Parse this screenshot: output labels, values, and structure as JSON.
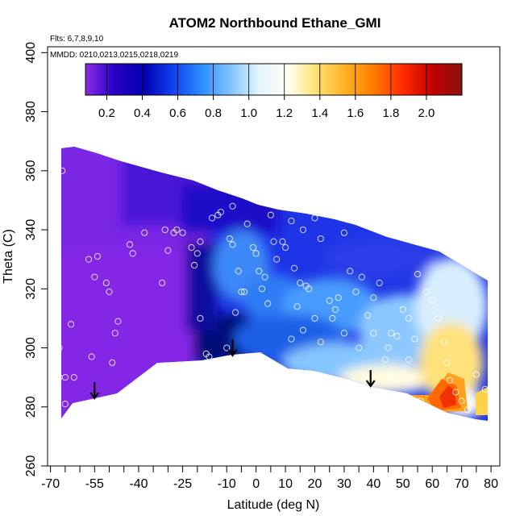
{
  "chart_data": {
    "type": "heatmap",
    "title": "ATOM2 Northbound Ethane_GMI",
    "subtitle_lines": [
      "Flts: 6,7,8,9,10",
      "MMDD: 0210,0213,0215,0218,0219"
    ],
    "xlabel": "Latitude (deg N)",
    "ylabel": "Theta (C)",
    "xlim": [
      -71,
      83
    ],
    "ylim": [
      260,
      402
    ],
    "x_tick_labels": [
      "-70",
      "-55",
      "-40",
      "-25",
      "-10",
      "0",
      "10",
      "20",
      "30",
      "40",
      "50",
      "60",
      "70",
      "80"
    ],
    "x_tick_values": [
      -70,
      -55,
      -40,
      -25,
      -10,
      0,
      10,
      20,
      30,
      40,
      50,
      60,
      70,
      80
    ],
    "x_minor_ticks": [
      -65,
      -60,
      -50,
      -45,
      -35,
      -30,
      -20,
      -15,
      -5,
      5,
      15,
      25,
      35,
      45,
      55,
      65,
      75
    ],
    "y_ticks": [
      260,
      280,
      300,
      320,
      340,
      360,
      380,
      400
    ],
    "colorbar": {
      "range": [
        0.08,
        2.2
      ],
      "tick_values": [
        0.2,
        0.4,
        0.6,
        0.8,
        1.0,
        1.2,
        1.4,
        1.6,
        1.8,
        2.0
      ],
      "tick_labels": [
        "0.2",
        "0.4",
        "0.6",
        "0.8",
        "1.0",
        "1.2",
        "1.4",
        "1.6",
        "1.8",
        "2.0"
      ],
      "colors": [
        "#8a2be2",
        "#2a00c8",
        "#0000b0",
        "#1040ee",
        "#2a8cff",
        "#80c4ff",
        "#e4f4ff",
        "#fffff0",
        "#ffe070",
        "#ffb020",
        "#ff7800",
        "#ff2800",
        "#c00000",
        "#8b1010"
      ]
    },
    "grid": false,
    "legend_placement": "top",
    "flight_markers_lat": [
      -55,
      -8,
      39
    ],
    "observations": [
      [
        -68,
        335
      ],
      [
        -66,
        360
      ],
      [
        -67,
        300
      ],
      [
        -67,
        290
      ],
      [
        -65,
        290
      ],
      [
        -63,
        308
      ],
      [
        -62,
        290
      ],
      [
        -65,
        281
      ],
      [
        -57,
        330
      ],
      [
        -55,
        324
      ],
      [
        -54,
        331
      ],
      [
        -51,
        322
      ],
      [
        -50,
        319
      ],
      [
        -48,
        305
      ],
      [
        -47,
        309
      ],
      [
        -49,
        295
      ],
      [
        -56,
        297
      ],
      [
        -43,
        335
      ],
      [
        -42,
        332
      ],
      [
        -38,
        339
      ],
      [
        -31,
        340
      ],
      [
        -30,
        333
      ],
      [
        -28,
        339
      ],
      [
        -27,
        340
      ],
      [
        -25,
        339
      ],
      [
        -22,
        334
      ],
      [
        -21,
        328
      ],
      [
        -20,
        332
      ],
      [
        -19,
        336
      ],
      [
        -19,
        310
      ],
      [
        -17,
        298
      ],
      [
        -16,
        297
      ],
      [
        -32,
        322
      ],
      [
        -15,
        344
      ],
      [
        -13,
        345
      ],
      [
        -12,
        346
      ],
      [
        -9,
        337
      ],
      [
        -8,
        335
      ],
      [
        -6,
        326
      ],
      [
        -7,
        312
      ],
      [
        -8,
        348
      ],
      [
        -10,
        300
      ],
      [
        -3,
        342
      ],
      [
        -1,
        334
      ],
      [
        0,
        332
      ],
      [
        1,
        326
      ],
      [
        2,
        320
      ],
      [
        3,
        324
      ],
      [
        4,
        315
      ],
      [
        5,
        345
      ],
      [
        6,
        336
      ],
      [
        7,
        330
      ],
      [
        9,
        336
      ],
      [
        -5,
        319
      ],
      [
        10,
        334
      ],
      [
        -4,
        319
      ],
      [
        12,
        343
      ],
      [
        13,
        327
      ],
      [
        15,
        322
      ],
      [
        17,
        321
      ],
      [
        18,
        320
      ],
      [
        14,
        314
      ],
      [
        16,
        340
      ],
      [
        20,
        344
      ],
      [
        22,
        337
      ],
      [
        25,
        316
      ],
      [
        27,
        313
      ],
      [
        28,
        317
      ],
      [
        12,
        303
      ],
      [
        16,
        306
      ],
      [
        20,
        310
      ],
      [
        30,
        339
      ],
      [
        32,
        326
      ],
      [
        34,
        319
      ],
      [
        36,
        324
      ],
      [
        38,
        311
      ],
      [
        40,
        317
      ],
      [
        42,
        322
      ],
      [
        45,
        300
      ],
      [
        48,
        304
      ],
      [
        50,
        313
      ],
      [
        52,
        310
      ],
      [
        54,
        303
      ],
      [
        55,
        325
      ],
      [
        58,
        319
      ],
      [
        60,
        316
      ],
      [
        62,
        310
      ],
      [
        64,
        302
      ],
      [
        65,
        295
      ],
      [
        66,
        289
      ],
      [
        68,
        285
      ],
      [
        70,
        282
      ],
      [
        72,
        279
      ],
      [
        75,
        291
      ],
      [
        78,
        286
      ],
      [
        80,
        322
      ],
      [
        82,
        295
      ],
      [
        22,
        302
      ],
      [
        26,
        310
      ],
      [
        30,
        305
      ],
      [
        35,
        300
      ],
      [
        44,
        296
      ],
      [
        46,
        291
      ],
      [
        52,
        296
      ],
      [
        56,
        282
      ],
      [
        60,
        279
      ],
      [
        63,
        277
      ],
      [
        67,
        275
      ],
      [
        46,
        305
      ],
      [
        40,
        305
      ]
    ]
  }
}
